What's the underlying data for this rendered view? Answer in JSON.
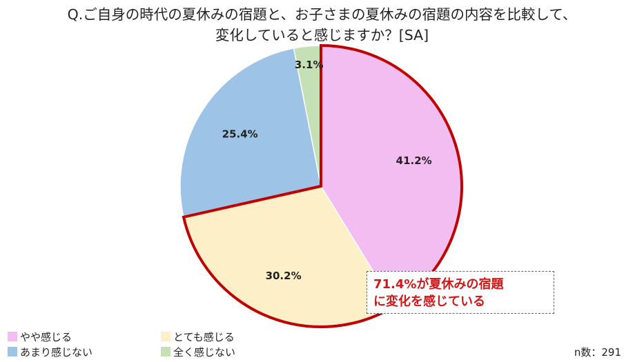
{
  "title_line1": "Q.ご自身の時代の夏休みの宿題と、お子さまの夏休みの宿題の内容を比較して、",
  "title_line2": "変化していると感じますか？[SA]",
  "chart_data": {
    "type": "pie",
    "unit": "%",
    "start_angle_deg": 0,
    "direction": "clockwise",
    "slices": [
      {
        "label": "やや感じる",
        "value": 41.2,
        "display": "41.2%",
        "color": "#f2bdf1",
        "highlight": true
      },
      {
        "label": "とても感じる",
        "value": 30.2,
        "display": "30.2%",
        "color": "#fdefc8",
        "highlight": true
      },
      {
        "label": "あまり感じない",
        "value": 25.4,
        "display": "25.4%",
        "color": "#9dc3e6",
        "highlight": false
      },
      {
        "label": "全く感じない",
        "value": 3.1,
        "display": "3.1%",
        "color": "#c5e0b4",
        "highlight": false
      }
    ],
    "highlight_outline_color": "#c00000"
  },
  "callout": {
    "line1": "71.4%が夏休みの宿題",
    "line2": "に変化を感じている"
  },
  "legend": [
    {
      "label": "やや感じる",
      "color": "#f2bdf1"
    },
    {
      "label": "とても感じる",
      "color": "#fdefc8"
    },
    {
      "label": "あまり感じない",
      "color": "#9dc3e6"
    },
    {
      "label": "全く感じない",
      "color": "#c5e0b4"
    }
  ],
  "sample_note": "n数：291"
}
